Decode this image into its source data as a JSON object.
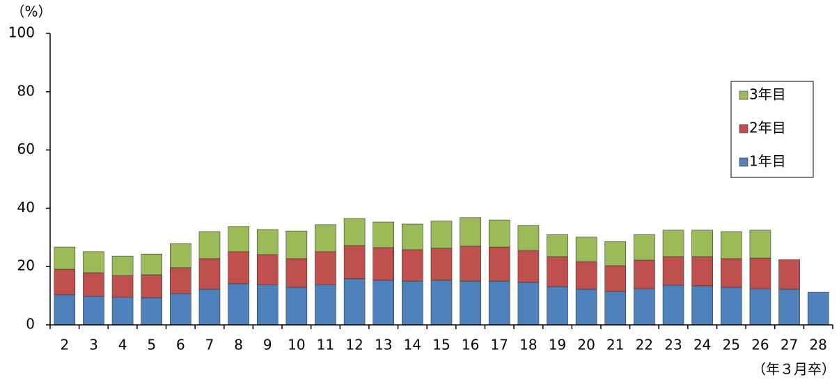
{
  "chart_data": {
    "type": "stacked_bar",
    "y_unit_label": "（%）",
    "x_unit_label": "（年３月卒）",
    "categories": [
      "2",
      "3",
      "4",
      "5",
      "6",
      "7",
      "8",
      "9",
      "10",
      "11",
      "12",
      "13",
      "14",
      "15",
      "16",
      "17",
      "18",
      "19",
      "20",
      "21",
      "22",
      "23",
      "24",
      "25",
      "26",
      "27",
      "28"
    ],
    "series": [
      {
        "name": "1年目",
        "color": "#4f81bd",
        "values": [
          10.3,
          9.8,
          9.5,
          9.3,
          10.7,
          12.2,
          14.1,
          13.8,
          12.9,
          13.8,
          15.8,
          15.3,
          15.0,
          15.3,
          15.0,
          15.0,
          14.6,
          13.1,
          12.2,
          11.5,
          12.4,
          13.6,
          13.4,
          12.9,
          12.4,
          12.2,
          11.2
        ]
      },
      {
        "name": "2年目",
        "color": "#c0504d",
        "values": [
          8.8,
          8.1,
          7.4,
          7.9,
          8.9,
          10.5,
          11.0,
          10.3,
          9.8,
          11.3,
          11.4,
          11.2,
          10.8,
          11.0,
          12.0,
          11.7,
          10.9,
          10.3,
          9.5,
          8.8,
          9.8,
          9.8,
          10.0,
          9.8,
          10.5,
          10.2,
          null
        ]
      },
      {
        "name": "3年目",
        "color": "#9bbb59",
        "values": [
          7.6,
          7.2,
          6.7,
          7.1,
          8.3,
          9.3,
          8.6,
          8.6,
          9.5,
          9.3,
          9.3,
          8.8,
          8.8,
          9.3,
          9.8,
          9.3,
          8.6,
          7.6,
          8.4,
          8.3,
          8.8,
          9.1,
          9.1,
          9.3,
          9.6,
          null,
          null
        ]
      }
    ],
    "ylim": [
      0,
      100
    ],
    "yticks": [
      0,
      20,
      40,
      60,
      80,
      100
    ],
    "grid": false,
    "legend": "upper right"
  }
}
